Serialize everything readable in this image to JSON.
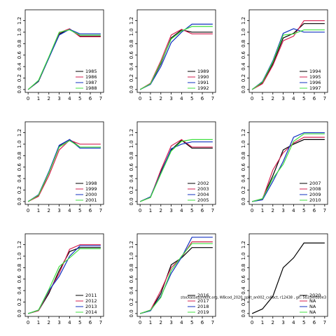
{
  "chart_data": [
    {
      "type": "line",
      "x": [
        0,
        1,
        2,
        3,
        4,
        5,
        6,
        7
      ],
      "xlim": [
        -0.28,
        7.28
      ],
      "ylim": [
        -0.05,
        1.39
      ],
      "xticks": [
        0,
        1,
        2,
        3,
        4,
        5,
        6,
        7
      ],
      "yticks": [
        {
          "value": 0,
          "label": "0.0"
        },
        0.2,
        0.4,
        0.6,
        0.8,
        {
          "value": 1,
          "label": "1.0"
        },
        1.2
      ],
      "legend": "bottomright",
      "series": [
        {
          "name": "1985",
          "color": "#000000",
          "values": [
            0,
            0.14,
            0.55,
            0.97,
            1.05,
            0.93,
            0.93,
            0.93
          ]
        },
        {
          "name": "1986",
          "color": "#d62050",
          "values": [
            0,
            0.15,
            0.56,
            0.99,
            1.06,
            0.92,
            0.92,
            0.92
          ]
        },
        {
          "name": "1987",
          "color": "#1030c0",
          "values": [
            0,
            0.15,
            0.55,
            0.95,
            1.05,
            0.97,
            0.97,
            0.97
          ]
        },
        {
          "name": "1988",
          "color": "#40e040",
          "values": [
            0,
            0.16,
            0.57,
            1.0,
            1.04,
            0.95,
            0.95,
            0.95
          ]
        }
      ]
    },
    {
      "type": "line",
      "x": [
        0,
        1,
        2,
        3,
        4,
        5,
        6,
        7
      ],
      "xlim": [
        -0.28,
        7.28
      ],
      "ylim": [
        -0.05,
        1.39
      ],
      "xticks": [
        0,
        1,
        2,
        3,
        4,
        5,
        6,
        7
      ],
      "yticks": [
        {
          "value": 0,
          "label": "0.0"
        },
        0.2,
        0.4,
        0.6,
        0.8,
        {
          "value": 1,
          "label": "1.0"
        },
        1.2
      ],
      "legend": "bottomright",
      "series": [
        {
          "name": "1989",
          "color": "#000000",
          "values": [
            0,
            0.1,
            0.45,
            0.9,
            1.04,
            1.0,
            1.0,
            1.0
          ]
        },
        {
          "name": "1990",
          "color": "#d62050",
          "values": [
            0,
            0.11,
            0.5,
            0.95,
            1.05,
            0.97,
            0.97,
            0.97
          ]
        },
        {
          "name": "1991",
          "color": "#1030c0",
          "values": [
            0,
            0.09,
            0.4,
            0.82,
            1.0,
            1.14,
            1.14,
            1.14
          ]
        },
        {
          "name": "1992",
          "color": "#40e040",
          "values": [
            0,
            0.1,
            0.47,
            0.88,
            1.02,
            1.1,
            1.1,
            1.1
          ]
        }
      ]
    },
    {
      "type": "line",
      "x": [
        0,
        1,
        2,
        3,
        4,
        5,
        6,
        7
      ],
      "xlim": [
        -0.28,
        7.28
      ],
      "ylim": [
        -0.05,
        1.39
      ],
      "xticks": [
        0,
        1,
        2,
        3,
        4,
        5,
        6,
        7
      ],
      "yticks": [
        {
          "value": 0,
          "label": "0.0"
        },
        0.2,
        0.4,
        0.6,
        0.8,
        {
          "value": 1,
          "label": "1.0"
        },
        1.2
      ],
      "legend": "bottomright",
      "series": [
        {
          "name": "1994",
          "color": "#000000",
          "values": [
            0,
            0.12,
            0.45,
            0.9,
            0.98,
            1.15,
            1.15,
            1.15
          ]
        },
        {
          "name": "1995",
          "color": "#d62050",
          "values": [
            0,
            0.1,
            0.42,
            0.85,
            0.93,
            1.2,
            1.2,
            1.2
          ]
        },
        {
          "name": "1996",
          "color": "#1030c0",
          "values": [
            0,
            0.14,
            0.5,
            0.98,
            1.06,
            1.0,
            1.0,
            1.0
          ]
        },
        {
          "name": "1997",
          "color": "#40e040",
          "values": [
            0,
            0.13,
            0.48,
            0.95,
            0.97,
            1.04,
            1.04,
            1.04
          ]
        }
      ]
    },
    {
      "type": "line",
      "x": [
        0,
        1,
        2,
        3,
        4,
        5,
        6,
        7
      ],
      "xlim": [
        -0.28,
        7.28
      ],
      "ylim": [
        -0.05,
        1.39
      ],
      "xticks": [
        0,
        1,
        2,
        3,
        4,
        5,
        6,
        7
      ],
      "yticks": [
        {
          "value": 0,
          "label": "0.0"
        },
        0.2,
        0.4,
        0.6,
        0.8,
        {
          "value": 1,
          "label": "1.0"
        },
        1.2
      ],
      "legend": "bottomright",
      "series": [
        {
          "name": "1998",
          "color": "#000000",
          "values": [
            0,
            0.1,
            0.5,
            0.97,
            1.08,
            0.95,
            0.95,
            0.95
          ]
        },
        {
          "name": "1999",
          "color": "#d62050",
          "values": [
            0,
            0.09,
            0.45,
            0.9,
            1.07,
            1.0,
            1.0,
            1.0
          ]
        },
        {
          "name": "2000",
          "color": "#1030c0",
          "values": [
            0,
            0.12,
            0.52,
            0.98,
            1.08,
            0.93,
            0.93,
            0.93
          ]
        },
        {
          "name": "2001",
          "color": "#40e040",
          "values": [
            0,
            0.11,
            0.5,
            0.95,
            1.06,
            0.95,
            0.95,
            0.95
          ]
        }
      ]
    },
    {
      "type": "line",
      "x": [
        0,
        1,
        2,
        3,
        4,
        5,
        6,
        7
      ],
      "xlim": [
        -0.28,
        7.28
      ],
      "ylim": [
        -0.05,
        1.39
      ],
      "xticks": [
        0,
        1,
        2,
        3,
        4,
        5,
        6,
        7
      ],
      "yticks": [
        {
          "value": 0,
          "label": "0.0"
        },
        0.2,
        0.4,
        0.6,
        0.8,
        {
          "value": 1,
          "label": "1.0"
        },
        1.2
      ],
      "legend": "bottomright",
      "series": [
        {
          "name": "2002",
          "color": "#000000",
          "values": [
            0,
            0.08,
            0.52,
            0.9,
            1.07,
            0.93,
            0.93,
            0.93
          ]
        },
        {
          "name": "2003",
          "color": "#d62050",
          "values": [
            0,
            0.07,
            0.55,
            0.97,
            1.08,
            0.95,
            0.95,
            0.95
          ]
        },
        {
          "name": "2004",
          "color": "#1030c0",
          "values": [
            0,
            0.08,
            0.5,
            0.92,
            1.0,
            1.04,
            1.04,
            1.04
          ]
        },
        {
          "name": "2005",
          "color": "#40e040",
          "values": [
            0,
            0.07,
            0.48,
            0.88,
            1.05,
            1.08,
            1.08,
            1.08
          ]
        }
      ]
    },
    {
      "type": "line",
      "x": [
        0,
        1,
        2,
        3,
        4,
        5,
        6,
        7
      ],
      "xlim": [
        -0.28,
        7.28
      ],
      "ylim": [
        -0.05,
        1.39
      ],
      "xticks": [
        0,
        1,
        2,
        3,
        4,
        5,
        6,
        7
      ],
      "yticks": [
        {
          "value": 0,
          "label": "0.0"
        },
        0.2,
        0.4,
        0.6,
        0.8,
        {
          "value": 1,
          "label": "1.0"
        },
        1.2
      ],
      "legend": "bottomright",
      "series": [
        {
          "name": "2007",
          "color": "#000000",
          "values": [
            0,
            0.05,
            0.45,
            0.9,
            1.0,
            1.08,
            1.08,
            1.08
          ]
        },
        {
          "name": "2008",
          "color": "#d62050",
          "values": [
            0,
            0.04,
            0.55,
            0.85,
            1.02,
            1.12,
            1.12,
            1.12
          ]
        },
        {
          "name": "2009",
          "color": "#1030c0",
          "values": [
            0,
            0.03,
            0.35,
            0.7,
            1.12,
            1.2,
            1.2,
            1.2
          ]
        },
        {
          "name": "2010",
          "color": "#40e040",
          "values": [
            0,
            0.05,
            0.4,
            0.65,
            1.05,
            1.18,
            1.18,
            1.18
          ]
        }
      ]
    },
    {
      "type": "line",
      "x": [
        0,
        1,
        2,
        3,
        4,
        5,
        6,
        7
      ],
      "xlim": [
        -0.28,
        7.28
      ],
      "ylim": [
        -0.05,
        1.39
      ],
      "xticks": [
        0,
        1,
        2,
        3,
        4,
        5,
        6,
        7
      ],
      "yticks": [
        {
          "value": 0,
          "label": "0.0"
        },
        0.2,
        0.4,
        0.6,
        0.8,
        {
          "value": 1,
          "label": "1.0"
        },
        1.2
      ],
      "legend": "bottomright",
      "series": [
        {
          "name": "2011",
          "color": "#000000",
          "values": [
            0,
            0.05,
            0.35,
            0.75,
            1.08,
            1.15,
            1.15,
            1.15
          ]
        },
        {
          "name": "2012",
          "color": "#d62050",
          "values": [
            0,
            0.05,
            0.38,
            0.7,
            1.12,
            1.2,
            1.2,
            1.2
          ]
        },
        {
          "name": "2013",
          "color": "#1030c0",
          "values": [
            0,
            0.06,
            0.4,
            0.65,
            1.0,
            1.18,
            1.18,
            1.18
          ]
        },
        {
          "name": "2014",
          "color": "#40e040",
          "values": [
            0,
            0.06,
            0.42,
            0.82,
            0.97,
            1.13,
            1.13,
            1.13
          ]
        }
      ]
    },
    {
      "type": "line",
      "x": [
        0,
        1,
        2,
        3,
        4,
        5,
        6,
        7
      ],
      "xlim": [
        -0.28,
        7.28
      ],
      "ylim": [
        -0.05,
        1.39
      ],
      "xticks": [
        0,
        1,
        2,
        3,
        4,
        5,
        6,
        7
      ],
      "yticks": [
        {
          "value": 0,
          "label": "0.0"
        },
        0.2,
        0.4,
        0.6,
        0.8,
        {
          "value": 1,
          "label": "1.0"
        },
        1.2
      ],
      "legend": "bottomright",
      "annotation": "stockassessment.org, WBcod_2020_split_an002_cv8act, r12438 , git: 5b334f0b0e3",
      "series": [
        {
          "name": "2016",
          "color": "#000000",
          "values": [
            0,
            0.05,
            0.35,
            0.85,
            0.97,
            1.15,
            1.15,
            1.15
          ]
        },
        {
          "name": "2017",
          "color": "#d62050",
          "values": [
            0,
            0.06,
            0.4,
            0.8,
            0.98,
            1.25,
            1.25,
            1.25
          ]
        },
        {
          "name": "2018",
          "color": "#1030c0",
          "values": [
            0,
            0.05,
            0.3,
            0.7,
            0.98,
            1.33,
            1.33,
            1.33
          ]
        },
        {
          "name": "2019",
          "color": "#40e040",
          "values": [
            0,
            0.06,
            0.28,
            0.75,
            1.0,
            1.22,
            1.22,
            1.22
          ]
        }
      ]
    },
    {
      "type": "line",
      "x": [
        0,
        1,
        2,
        3,
        4,
        5,
        6,
        7
      ],
      "xlim": [
        -0.28,
        7.28
      ],
      "ylim": [
        -0.05,
        1.39
      ],
      "xticks": [
        0,
        1,
        2,
        3,
        4,
        5,
        6,
        7
      ],
      "yticks": [
        {
          "value": 0,
          "label": "0.0"
        },
        0.2,
        0.4,
        0.6,
        0.8,
        {
          "value": 1,
          "label": "1.0"
        },
        1.2
      ],
      "legend": "bottomright",
      "series": [
        {
          "name": "2020",
          "color": "#000000",
          "values": [
            0,
            0.08,
            0.3,
            0.8,
            0.97,
            1.23,
            1.23,
            1.23
          ]
        },
        {
          "name": "NA",
          "color": "#d62050",
          "values": [
            null,
            null,
            null,
            null,
            null,
            null,
            null,
            null
          ]
        },
        {
          "name": "NA",
          "color": "#1030c0",
          "values": [
            null,
            null,
            null,
            null,
            null,
            null,
            null,
            null
          ]
        },
        {
          "name": "NA",
          "color": "#40e040",
          "values": [
            null,
            null,
            null,
            null,
            null,
            null,
            null,
            null
          ]
        }
      ]
    }
  ]
}
